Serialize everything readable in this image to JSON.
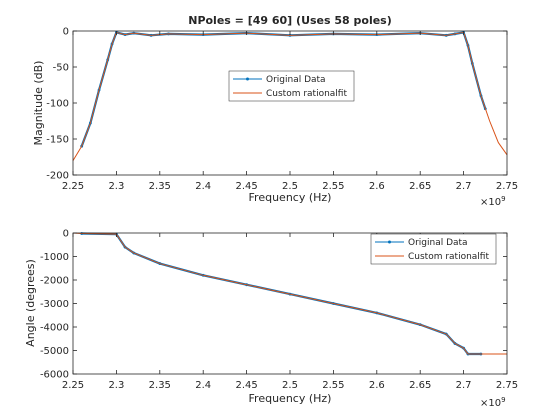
{
  "colors": {
    "original": "#0072BD",
    "fit": "#D95319",
    "axis": "#262626"
  },
  "chart_data": [
    {
      "type": "line",
      "title": "NPoles = [49 60] (Uses 58 poles)",
      "xlabel": "Frequency (Hz)",
      "ylabel": "Magnitude (dB)",
      "x_exponent_label": "×10",
      "x_exponent_power": "9",
      "xlim": [
        2250000000.0,
        2750000000.0
      ],
      "ylim": [
        -200,
        0
      ],
      "xticks": [
        2250000000.0,
        2300000000.0,
        2350000000.0,
        2400000000.0,
        2450000000.0,
        2500000000.0,
        2550000000.0,
        2600000000.0,
        2650000000.0,
        2700000000.0,
        2750000000.0
      ],
      "xtick_labels": [
        "2.25",
        "2.3",
        "2.35",
        "2.4",
        "2.45",
        "2.5",
        "2.55",
        "2.6",
        "2.65",
        "2.7",
        "2.75"
      ],
      "yticks": [
        0,
        -50,
        -100,
        -150,
        -200
      ],
      "ytick_labels": [
        "0",
        "-50",
        "-100",
        "-150",
        "-200"
      ],
      "grid": false,
      "legend": "center-top",
      "series": [
        {
          "name": "Original Data",
          "x": [
            2260000000.0,
            2270000000.0,
            2280000000.0,
            2290000000.0,
            2295000000.0,
            2300000000.0,
            2310000000.0,
            2320000000.0,
            2340000000.0,
            2360000000.0,
            2400000000.0,
            2450000000.0,
            2500000000.0,
            2550000000.0,
            2600000000.0,
            2650000000.0,
            2680000000.0,
            2690000000.0,
            2700000000.0,
            2705000000.0,
            2710000000.0,
            2720000000.0,
            2725000000.0
          ],
          "y": [
            -160,
            -128,
            -82,
            -40,
            -18,
            -2,
            -5,
            -3,
            -6,
            -4,
            -5,
            -3,
            -6,
            -4,
            -5,
            -3,
            -6,
            -4,
            -2,
            -20,
            -45,
            -90,
            -108
          ]
        },
        {
          "name": "Custom rationalfit",
          "x": [
            2250000000.0,
            2260000000.0,
            2270000000.0,
            2280000000.0,
            2290000000.0,
            2295000000.0,
            2300000000.0,
            2310000000.0,
            2320000000.0,
            2340000000.0,
            2360000000.0,
            2400000000.0,
            2450000000.0,
            2500000000.0,
            2550000000.0,
            2600000000.0,
            2650000000.0,
            2680000000.0,
            2690000000.0,
            2700000000.0,
            2705000000.0,
            2710000000.0,
            2720000000.0,
            2730000000.0,
            2740000000.0,
            2750000000.0
          ],
          "y": [
            -180,
            -160,
            -128,
            -82,
            -40,
            -18,
            -2,
            -5,
            -3,
            -6,
            -4,
            -5,
            -3,
            -6,
            -4,
            -5,
            -3,
            -6,
            -4,
            -2,
            -20,
            -45,
            -90,
            -125,
            -155,
            -172
          ]
        }
      ]
    },
    {
      "type": "line",
      "title": "",
      "xlabel": "Frequency (Hz)",
      "ylabel": "Angle (degrees)",
      "x_exponent_label": "×10",
      "x_exponent_power": "9",
      "xlim": [
        2250000000.0,
        2750000000.0
      ],
      "ylim": [
        -6000,
        0
      ],
      "xticks": [
        2250000000.0,
        2300000000.0,
        2350000000.0,
        2400000000.0,
        2450000000.0,
        2500000000.0,
        2550000000.0,
        2600000000.0,
        2650000000.0,
        2700000000.0,
        2750000000.0
      ],
      "xtick_labels": [
        "2.25",
        "2.3",
        "2.35",
        "2.4",
        "2.45",
        "2.5",
        "2.55",
        "2.6",
        "2.65",
        "2.7",
        "2.75"
      ],
      "yticks": [
        0,
        -1000,
        -2000,
        -3000,
        -4000,
        -5000,
        -6000
      ],
      "ytick_labels": [
        "0",
        "-1000",
        "-2000",
        "-3000",
        "-4000",
        "-5000",
        "-6000"
      ],
      "grid": false,
      "legend": "top-right",
      "series": [
        {
          "name": "Original Data",
          "x": [
            2260000000.0,
            2300000000.0,
            2310000000.0,
            2320000000.0,
            2350000000.0,
            2400000000.0,
            2450000000.0,
            2500000000.0,
            2550000000.0,
            2600000000.0,
            2650000000.0,
            2680000000.0,
            2690000000.0,
            2700000000.0,
            2705000000.0,
            2720000000.0
          ],
          "y": [
            -20,
            -50,
            -600,
            -850,
            -1300,
            -1800,
            -2200,
            -2600,
            -3000,
            -3400,
            -3900,
            -4300,
            -4700,
            -4900,
            -5150,
            -5150
          ]
        },
        {
          "name": "Custom rationalfit",
          "x": [
            2250000000.0,
            2260000000.0,
            2300000000.0,
            2310000000.0,
            2320000000.0,
            2350000000.0,
            2400000000.0,
            2450000000.0,
            2500000000.0,
            2550000000.0,
            2600000000.0,
            2650000000.0,
            2680000000.0,
            2690000000.0,
            2700000000.0,
            2705000000.0,
            2720000000.0,
            2750000000.0
          ],
          "y": [
            0,
            -20,
            -50,
            -600,
            -850,
            -1300,
            -1800,
            -2200,
            -2600,
            -3000,
            -3400,
            -3900,
            -4300,
            -4700,
            -4900,
            -5150,
            -5150,
            -5150
          ]
        }
      ]
    }
  ]
}
